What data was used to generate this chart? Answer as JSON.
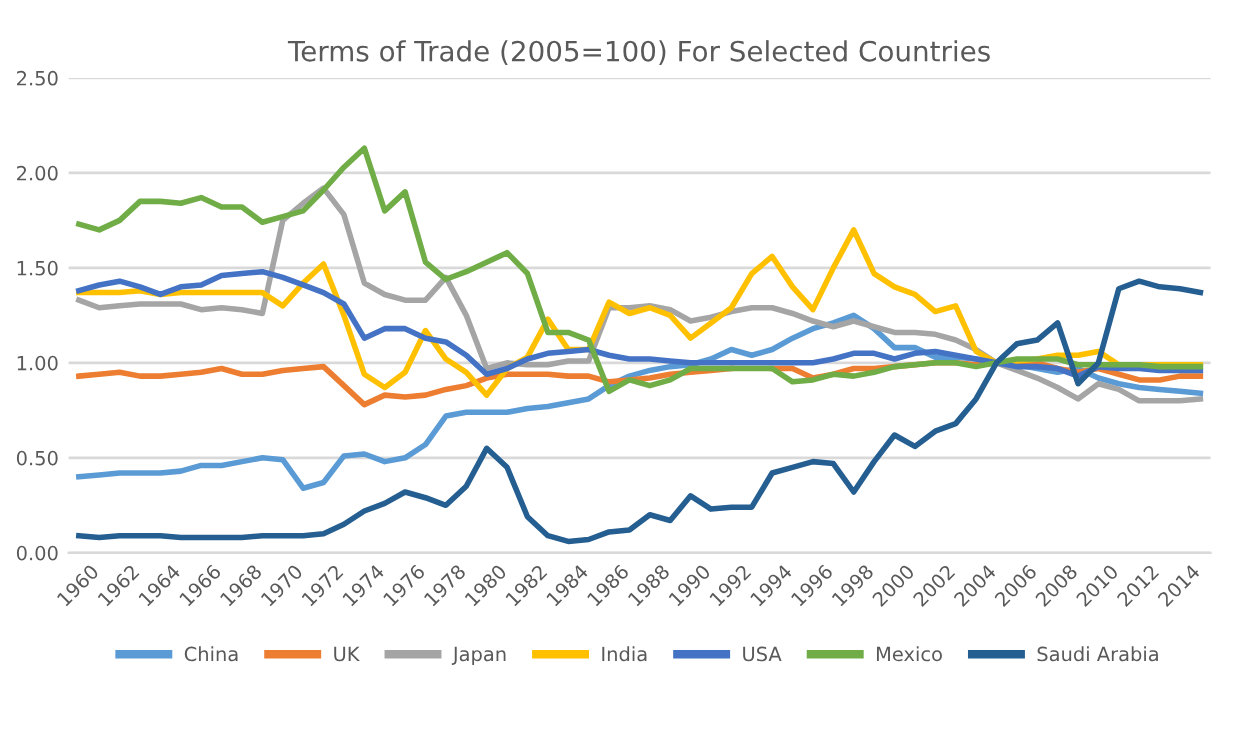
{
  "chart_data": {
    "type": "line",
    "title": "Terms of Trade (2005=100) For Selected Countries",
    "categories": [
      "1960",
      null,
      "1962",
      null,
      "1964",
      null,
      "1966",
      null,
      "1968",
      null,
      "1970",
      null,
      "1972",
      null,
      "1974",
      null,
      "1976",
      null,
      "1978",
      null,
      "1980",
      null,
      "1982",
      null,
      "1984",
      null,
      "1986",
      null,
      "1988",
      null,
      "1990",
      null,
      "1992",
      null,
      "1994",
      null,
      "1996",
      null,
      "1998",
      null,
      "2000",
      null,
      "2002",
      null,
      "2004",
      null,
      "2006",
      null,
      "2008",
      null,
      "2010",
      null,
      "2012",
      null,
      "2014",
      null
    ],
    "ylim": [
      0,
      2.5
    ],
    "yticks": [
      {
        "value": 0,
        "label": "0.00"
      },
      {
        "value": 0.5,
        "label": "0.50"
      },
      {
        "value": 1,
        "label": "1.00"
      },
      {
        "value": 1.5,
        "label": "1.50"
      },
      {
        "value": 2,
        "label": "2.00"
      },
      {
        "value": 2.5,
        "label": "2.50"
      }
    ],
    "grid": "y",
    "legend": "bottom",
    "marker": "none",
    "line_style": "solid",
    "series": [
      {
        "name": "China",
        "color": "#5b9bd5",
        "values": [
          0.4,
          0.41,
          0.42,
          0.42,
          0.42,
          0.43,
          0.46,
          0.46,
          0.48,
          0.5,
          0.49,
          0.34,
          0.37,
          0.51,
          0.52,
          0.48,
          0.5,
          0.57,
          0.72,
          0.74,
          0.74,
          0.74,
          0.76,
          0.77,
          0.79,
          0.81,
          0.88,
          0.93,
          0.96,
          0.98,
          0.99,
          1.02,
          1.07,
          1.04,
          1.07,
          1.13,
          1.18,
          1.21,
          1.25,
          1.18,
          1.08,
          1.08,
          1.03,
          1.03,
          1.02,
          1.0,
          0.99,
          0.97,
          0.95,
          0.97,
          0.92,
          0.89,
          0.87,
          0.86,
          0.85,
          0.84
        ]
      },
      {
        "name": "UK",
        "color": "#ed7d31",
        "values": [
          0.93,
          0.94,
          0.95,
          0.93,
          0.93,
          0.94,
          0.95,
          0.97,
          0.94,
          0.94,
          0.96,
          0.97,
          0.98,
          0.88,
          0.78,
          0.83,
          0.82,
          0.83,
          0.86,
          0.88,
          0.92,
          0.94,
          0.94,
          0.94,
          0.93,
          0.93,
          0.9,
          0.91,
          0.92,
          0.94,
          0.95,
          0.96,
          0.97,
          null,
          0.97,
          0.97,
          0.92,
          0.94,
          0.97,
          0.97,
          0.98,
          0.99,
          1.0,
          1.0,
          0.99,
          1.0,
          0.99,
          1.0,
          0.97,
          0.95,
          0.97,
          0.94,
          0.91,
          0.91,
          0.93,
          0.93
        ]
      },
      {
        "name": "Japan",
        "color": "#a5a5a5",
        "values": [
          1.33,
          1.29,
          1.3,
          1.31,
          1.31,
          1.31,
          1.28,
          1.29,
          1.28,
          1.26,
          1.75,
          1.84,
          1.92,
          1.78,
          1.42,
          1.36,
          1.33,
          1.33,
          1.45,
          1.25,
          0.97,
          1.0,
          0.99,
          0.99,
          1.01,
          1.01,
          1.29,
          1.29,
          1.3,
          1.28,
          1.22,
          1.24,
          1.27,
          1.29,
          1.29,
          1.26,
          1.22,
          1.19,
          1.22,
          1.19,
          1.16,
          1.16,
          1.15,
          1.12,
          1.07,
          1.0,
          0.96,
          0.92,
          0.87,
          0.81,
          0.89,
          0.86,
          0.8,
          0.8,
          0.8,
          0.81
        ]
      },
      {
        "name": "India",
        "color": "#ffc000",
        "values": [
          1.37,
          1.37,
          1.37,
          1.38,
          1.36,
          1.37,
          1.37,
          1.37,
          1.37,
          1.37,
          1.3,
          1.42,
          1.52,
          1.25,
          0.94,
          0.87,
          0.95,
          1.17,
          1.02,
          0.95,
          0.83,
          0.97,
          1.03,
          1.23,
          1.07,
          1.07,
          1.32,
          1.26,
          1.29,
          1.25,
          1.13,
          1.21,
          1.29,
          1.47,
          1.56,
          1.4,
          1.28,
          1.5,
          1.7,
          1.47,
          1.4,
          1.36,
          1.27,
          1.3,
          1.06,
          1.0,
          1.01,
          1.02,
          1.04,
          1.04,
          1.06,
          0.99,
          0.99,
          0.99,
          0.99,
          0.99
        ]
      },
      {
        "name": "USA",
        "color": "#4472c4",
        "values": [
          1.38,
          1.41,
          1.43,
          1.4,
          1.36,
          1.4,
          1.41,
          1.46,
          1.47,
          1.48,
          1.45,
          1.41,
          1.37,
          1.31,
          1.13,
          1.18,
          1.18,
          1.13,
          1.11,
          1.04,
          0.94,
          0.97,
          1.02,
          1.05,
          1.06,
          1.07,
          1.04,
          1.02,
          1.02,
          1.01,
          1.0,
          1.0,
          1.0,
          1.0,
          1.0,
          1.0,
          1.0,
          1.02,
          1.05,
          1.05,
          1.02,
          1.05,
          1.06,
          1.04,
          1.02,
          1.0,
          0.98,
          0.98,
          0.97,
          0.93,
          0.98,
          0.97,
          0.97,
          0.96,
          0.96,
          0.96
        ]
      },
      {
        "name": "Mexico",
        "color": "#70ad47",
        "values": [
          1.73,
          1.7,
          1.75,
          1.85,
          1.85,
          1.84,
          1.87,
          1.82,
          1.82,
          1.74,
          1.77,
          1.8,
          1.91,
          2.03,
          2.13,
          1.8,
          1.9,
          1.53,
          1.44,
          1.48,
          1.53,
          1.58,
          1.47,
          1.16,
          1.16,
          1.12,
          0.85,
          0.91,
          0.88,
          0.91,
          0.97,
          0.97,
          0.97,
          0.97,
          0.97,
          0.9,
          0.91,
          0.94,
          0.93,
          0.95,
          0.98,
          0.99,
          1.0,
          1.0,
          0.98,
          1.0,
          1.02,
          1.02,
          1.02,
          0.99,
          0.99,
          0.99,
          0.99,
          0.98,
          0.98,
          0.98
        ]
      },
      {
        "name": "Saudi Arabia",
        "color": "#255e91",
        "values": [
          0.09,
          0.08,
          0.09,
          0.09,
          0.09,
          0.08,
          0.08,
          0.08,
          0.08,
          0.09,
          0.09,
          0.09,
          0.1,
          0.15,
          0.22,
          0.26,
          0.32,
          0.29,
          0.25,
          0.35,
          0.55,
          0.45,
          0.19,
          0.09,
          0.06,
          0.07,
          0.11,
          0.12,
          0.2,
          0.17,
          0.3,
          0.23,
          0.24,
          0.24,
          0.42,
          0.45,
          0.48,
          0.47,
          0.32,
          0.48,
          0.62,
          0.56,
          0.64,
          0.68,
          0.81,
          1.0,
          1.1,
          1.12,
          1.21,
          0.89,
          1.0,
          1.39,
          1.43,
          1.4,
          1.39,
          1.37
        ]
      }
    ]
  }
}
